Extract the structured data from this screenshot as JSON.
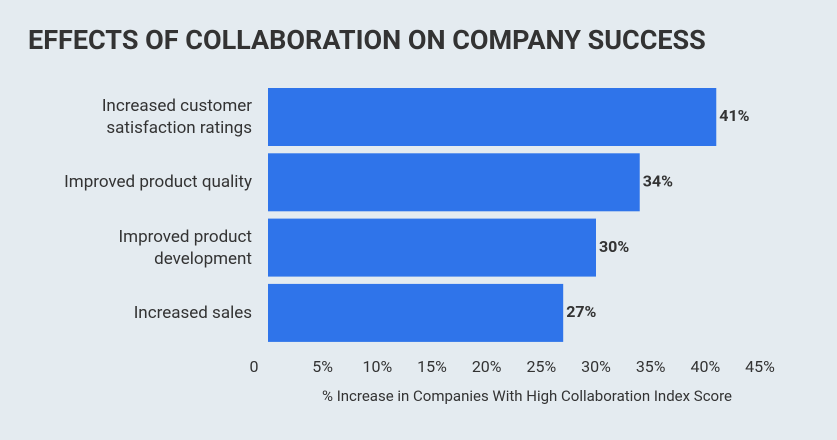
{
  "chart_data": {
    "type": "bar",
    "orientation": "horizontal",
    "title": "EFFECTS OF COLLABORATION ON COMPANY SUCCESS",
    "x_label": "% Increase in Companies With High Collaboration Index Score",
    "categories": [
      "Increased customer satisfaction ratings",
      "Improved product quality",
      "Improved product development",
      "Increased sales"
    ],
    "values": [
      41,
      34,
      30,
      27
    ],
    "value_labels": [
      "41%",
      "34%",
      "30%",
      "27%"
    ],
    "color": "#2f74ea",
    "xlim": [
      0,
      45
    ],
    "xticks": [
      0,
      {
        "value": 5,
        "label": "5%"
      },
      {
        "value": 10,
        "label": "10%"
      },
      {
        "value": 15,
        "label": "15%"
      },
      {
        "value": 20,
        "label": "20%"
      },
      {
        "value": 25,
        "label": "25%"
      },
      {
        "value": 30,
        "label": "30%"
      },
      {
        "value": 35,
        "label": "35%"
      },
      {
        "value": 40,
        "label": "40%"
      },
      {
        "value": 45,
        "label": "45%"
      }
    ]
  }
}
